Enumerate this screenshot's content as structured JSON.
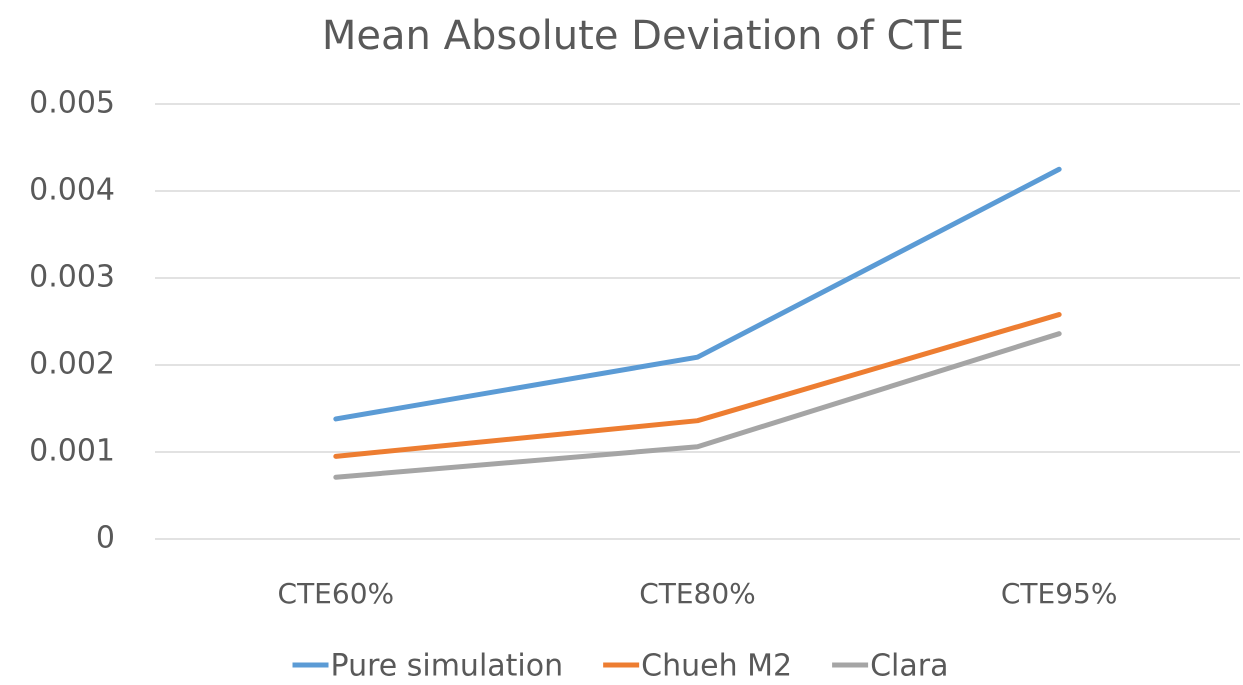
{
  "chart_data": {
    "type": "line",
    "title": "Mean Absolute Deviation of CTE",
    "categories": [
      "CTE60%",
      "CTE80%",
      "CTE95%"
    ],
    "series": [
      {
        "name": "Pure simulation",
        "color": "#5b9bd5",
        "values": [
          0.00138,
          0.00209,
          0.00425
        ]
      },
      {
        "name": "Chueh M2",
        "color": "#ed7d31",
        "values": [
          0.00095,
          0.00136,
          0.00258
        ]
      },
      {
        "name": "Clara",
        "color": "#a5a5a5",
        "values": [
          0.00071,
          0.00106,
          0.00236
        ]
      }
    ],
    "ylim": [
      0,
      0.005
    ],
    "yticks": [
      0,
      0.001,
      0.002,
      0.003,
      0.004,
      0.005
    ],
    "grid": true,
    "legend": "bottom"
  }
}
